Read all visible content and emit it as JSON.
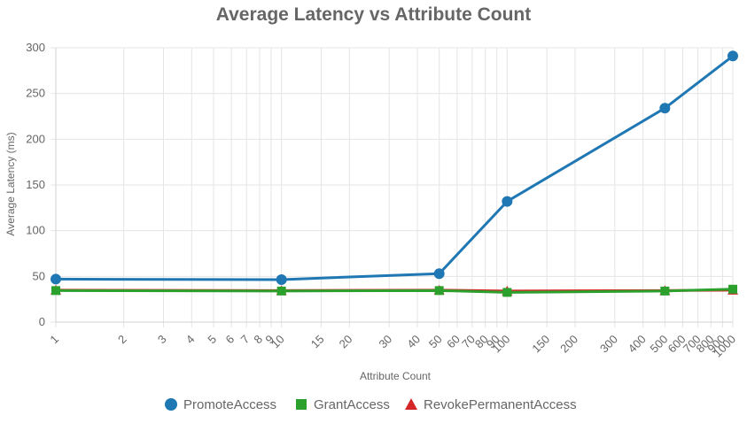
{
  "chart_data": {
    "type": "line",
    "title": "Average Latency vs Attribute Count",
    "xlabel": "Attribute Count",
    "ylabel": "Average Latency (ms)",
    "x_scale": "log",
    "xlim": [
      1,
      1000
    ],
    "ylim": [
      0,
      300
    ],
    "y_ticks": [
      0,
      50,
      100,
      150,
      200,
      250,
      300
    ],
    "x_ticks": [
      1,
      2,
      3,
      4,
      5,
      6,
      7,
      8,
      9,
      10,
      15,
      20,
      30,
      40,
      50,
      60,
      70,
      80,
      90,
      100,
      150,
      200,
      300,
      400,
      500,
      600,
      700,
      800,
      900,
      1000
    ],
    "grid": true,
    "legend_position": "bottom",
    "x": [
      1,
      10,
      50,
      100,
      500,
      1000
    ],
    "series": [
      {
        "name": "PromoteAccess",
        "color": "#1f77b4",
        "marker": "circle",
        "values": [
          47,
          46.5,
          53,
          132,
          234,
          291
        ]
      },
      {
        "name": "GrantAccess",
        "color": "#2ca02c",
        "marker": "square",
        "values": [
          34.5,
          34,
          34.5,
          32.5,
          34,
          36
        ]
      },
      {
        "name": "RevokePermanentAccess",
        "color": "#d62728",
        "marker": "triangle",
        "values": [
          35,
          34.5,
          35,
          34,
          34.5,
          35
        ]
      }
    ]
  }
}
